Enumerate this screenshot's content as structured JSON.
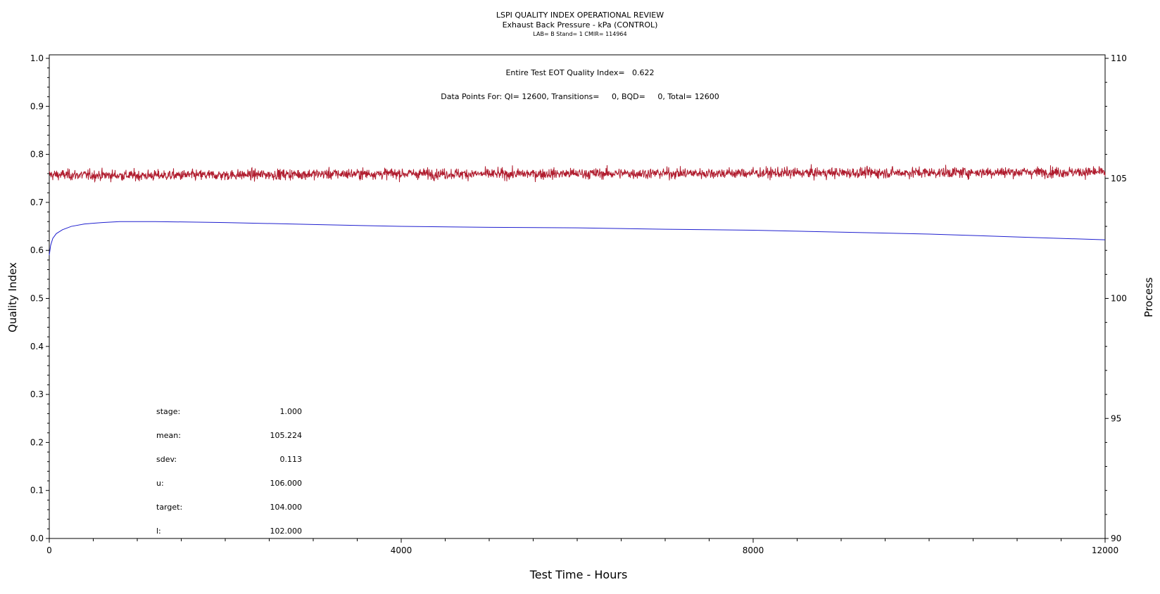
{
  "chart_data": {
    "type": "line",
    "title": "LSPI QUALITY INDEX OPERATIONAL REVIEW",
    "subtitle": "Exhaust Back Pressure - kPa (CONTROL)",
    "subtitle2": "LAB= B Stand= 1 CMIR= 114964",
    "xlabel": "Test Time - Hours",
    "ylabel_left": "Quality Index",
    "ylabel_right": "Process",
    "xlim": [
      0,
      12000
    ],
    "ylim_left": [
      0.0,
      1.0
    ],
    "ylim_right": [
      90,
      110
    ],
    "x_ticks": [
      "0",
      "4000",
      "8000",
      "12000"
    ],
    "y_left_ticks": [
      "0.0",
      "0.1",
      "0.2",
      "0.3",
      "0.4",
      "0.5",
      "0.6",
      "0.7",
      "0.8",
      "0.9",
      "1.0"
    ],
    "y_right_ticks": [
      "90",
      "95",
      "100",
      "105",
      "110"
    ],
    "annotations": {
      "eot_quality_index": "Entire Test EOT Quality Index=   0.622",
      "data_points": "Data Points For: QI= 12600, Transitions=     0, BQD=     0, Total= 12600"
    },
    "stats": [
      {
        "label": "stage:",
        "value": "1.000"
      },
      {
        "label": "mean:",
        "value": "105.224"
      },
      {
        "label": "sdev:",
        "value": "0.113"
      },
      {
        "label": "u:",
        "value": "106.000"
      },
      {
        "label": "target:",
        "value": "104.000"
      },
      {
        "label": "l:",
        "value": "102.000"
      }
    ],
    "series": [
      {
        "axis": "right",
        "color": "#b01c2e",
        "x": [
          0,
          1000,
          2000,
          3000,
          4000,
          5000,
          6000,
          7000,
          8000,
          9000,
          10000,
          11000,
          12000
        ],
        "values": [
          105.15,
          105.12,
          105.14,
          105.18,
          105.2,
          105.18,
          105.2,
          105.21,
          105.22,
          105.23,
          105.24,
          105.26,
          105.26
        ],
        "noise_sdev": 0.113
      },
      {
        "axis": "left",
        "color": "#1f1fcf",
        "x": [
          0,
          15,
          40,
          80,
          150,
          250,
          400,
          600,
          800,
          1200,
          2000,
          3000,
          4000,
          5000,
          6000,
          7000,
          8000,
          9000,
          10000,
          11000,
          12000
        ],
        "values": [
          0.59,
          0.61,
          0.625,
          0.635,
          0.643,
          0.65,
          0.655,
          0.658,
          0.66,
          0.66,
          0.658,
          0.654,
          0.65,
          0.648,
          0.647,
          0.644,
          0.642,
          0.638,
          0.634,
          0.628,
          0.622
        ]
      }
    ]
  }
}
